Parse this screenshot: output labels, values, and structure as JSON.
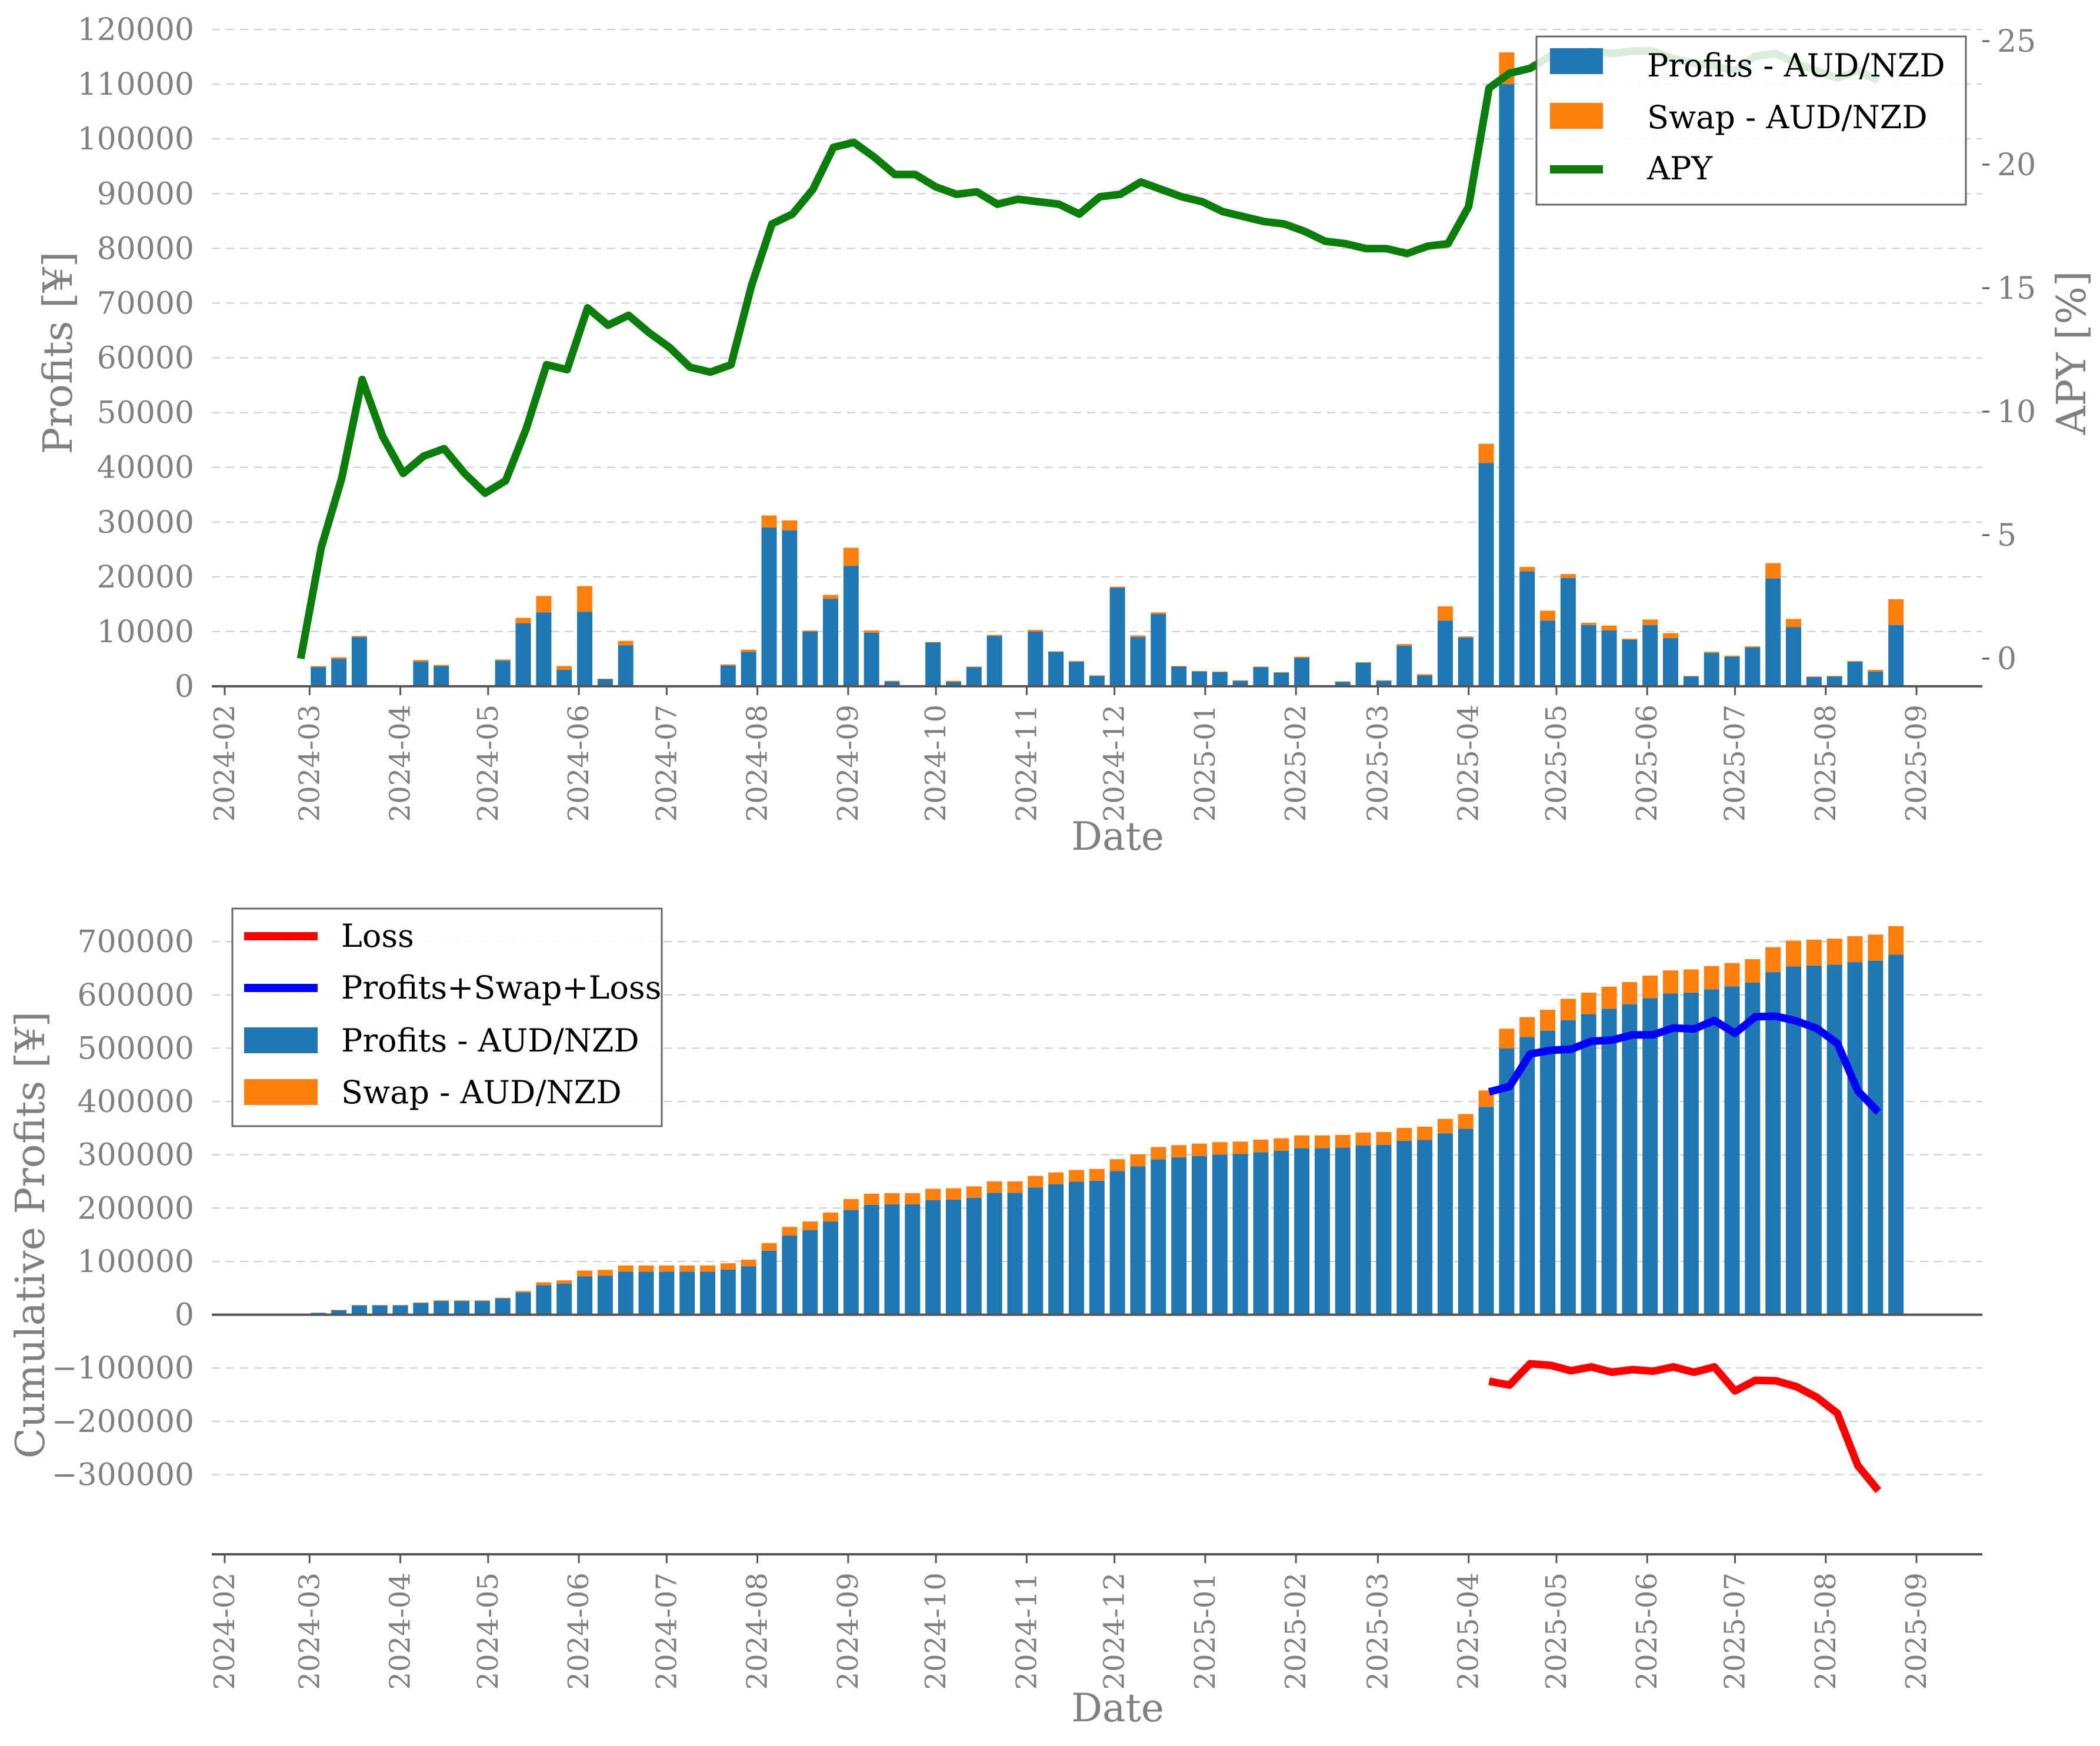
{
  "colors": {
    "profits": "#1f77b4",
    "swap": "#ff7f0e",
    "apy": "#0b7d0b",
    "loss": "#ff0000",
    "net": "#0000ff",
    "grid": "#cccccc",
    "axis": "#555555",
    "text": "#808080"
  },
  "chart_data": [
    {
      "type": "bar",
      "stacked": true,
      "xlabel": "Date",
      "ylabel": "Profits [¥]",
      "y2label": "APY [%]",
      "ylim": [
        0,
        120000
      ],
      "y2lim": [
        -1.2,
        25
      ],
      "yticks": [
        0,
        10000,
        20000,
        30000,
        40000,
        50000,
        60000,
        70000,
        80000,
        90000,
        100000,
        110000,
        120000
      ],
      "y2ticks": [
        0,
        5,
        10,
        15,
        20,
        25
      ],
      "xticks": [
        "2024-02",
        "2024-03",
        "2024-04",
        "2024-05",
        "2024-06",
        "2024-07",
        "2024-08",
        "2024-09",
        "2024-10",
        "2024-11",
        "2024-12",
        "2025-01",
        "2025-02",
        "2025-03",
        "2025-04",
        "2025-05",
        "2025-06",
        "2025-07",
        "2025-08",
        "2025-09"
      ],
      "grid": "horizontal dashed",
      "legend": {
        "placement": "top-right",
        "entries": [
          "Profits - AUD/NZD",
          "Swap - AUD/NZD",
          "APY"
        ]
      },
      "x": [
        "2024-03-04",
        "2024-03-11",
        "2024-03-18",
        "2024-03-25",
        "2024-04-01",
        "2024-04-08",
        "2024-04-15",
        "2024-04-22",
        "2024-04-29",
        "2024-05-06",
        "2024-05-13",
        "2024-05-20",
        "2024-05-27",
        "2024-06-03",
        "2024-06-10",
        "2024-06-17",
        "2024-06-24",
        "2024-07-01",
        "2024-07-08",
        "2024-07-15",
        "2024-07-22",
        "2024-07-29",
        "2024-08-05",
        "2024-08-12",
        "2024-08-19",
        "2024-08-26",
        "2024-09-02",
        "2024-09-09",
        "2024-09-16",
        "2024-09-23",
        "2024-09-30",
        "2024-10-07",
        "2024-10-14",
        "2024-10-21",
        "2024-10-28",
        "2024-11-04",
        "2024-11-11",
        "2024-11-18",
        "2024-11-25",
        "2024-12-02",
        "2024-12-09",
        "2024-12-16",
        "2024-12-23",
        "2024-12-30",
        "2025-01-06",
        "2025-01-13",
        "2025-01-20",
        "2025-01-27",
        "2025-02-03",
        "2025-02-10",
        "2025-02-17",
        "2025-02-24",
        "2025-03-03",
        "2025-03-10",
        "2025-03-17",
        "2025-03-24",
        "2025-03-31",
        "2025-04-07",
        "2025-04-14",
        "2025-04-21",
        "2025-04-28",
        "2025-05-05",
        "2025-05-12",
        "2025-05-19",
        "2025-05-26",
        "2025-06-02",
        "2025-06-09",
        "2025-06-16",
        "2025-06-23",
        "2025-06-30",
        "2025-07-07",
        "2025-07-14",
        "2025-07-21",
        "2025-07-28",
        "2025-08-04",
        "2025-08-11",
        "2025-08-18",
        "2025-08-25"
      ],
      "series": [
        {
          "name": "Profits - AUD/NZD",
          "values": [
            3500,
            5000,
            9000,
            0,
            0,
            4500,
            3700,
            0,
            0,
            4700,
            11500,
            13500,
            3000,
            13600,
            1300,
            7500,
            0,
            0,
            0,
            0,
            3800,
            6300,
            29000,
            28500,
            10000,
            16000,
            22000,
            9800,
            900,
            0,
            8000,
            800,
            3500,
            9200,
            0,
            10000,
            6300,
            4500,
            1900,
            18000,
            9000,
            13200,
            3600,
            2700,
            2600,
            1000,
            3500,
            2500,
            5200,
            0,
            800,
            4300,
            1000,
            7400,
            2000,
            12000,
            8900,
            40800,
            110000,
            21000,
            12000,
            19800,
            11200,
            10200,
            8500,
            11200,
            8800,
            1800,
            6100,
            5400,
            7100,
            19700,
            10800,
            1700,
            1800,
            4500,
            2700,
            11200
          ]
        },
        {
          "name": "Swap - AUD/NZD",
          "values": [
            200,
            300,
            200,
            0,
            0,
            300,
            200,
            0,
            0,
            200,
            1000,
            3000,
            700,
            4700,
            100,
            800,
            0,
            0,
            0,
            0,
            200,
            400,
            2200,
            1800,
            200,
            700,
            3300,
            400,
            100,
            0,
            100,
            200,
            100,
            200,
            0,
            300,
            100,
            100,
            100,
            200,
            300,
            300,
            100,
            100,
            100,
            100,
            100,
            100,
            200,
            0,
            100,
            100,
            100,
            300,
            200,
            2600,
            200,
            3500,
            5800,
            800,
            1800,
            700,
            400,
            900,
            200,
            1000,
            900,
            100,
            200,
            200,
            200,
            2800,
            1500,
            100,
            100,
            100,
            300,
            4700
          ]
        },
        {
          "name": "APY",
          "values": [
            0,
            4.5,
            7.3,
            11.3,
            9,
            7.5,
            8.2,
            8.5,
            7.5,
            6.7,
            7.2,
            9.3,
            11.9,
            11.7,
            14.2,
            13.5,
            13.9,
            13.2,
            12.6,
            11.8,
            11.6,
            11.9,
            15.1,
            17.6,
            18,
            19,
            20.7,
            20.9,
            20.3,
            19.6,
            19.6,
            19.1,
            18.8,
            18.9,
            18.4,
            18.6,
            18.5,
            18.4,
            18,
            18.7,
            18.8,
            19.3,
            19,
            18.7,
            18.5,
            18.1,
            17.9,
            17.7,
            17.6,
            17.3,
            16.9,
            16.8,
            16.6,
            16.6,
            16.4,
            16.7,
            16.8,
            18.3,
            23.1,
            23.7,
            23.9,
            24.4,
            24.5,
            24.6,
            24.5,
            24.6,
            24.6,
            24.3,
            24.1,
            24,
            23.8,
            24.4,
            24.5,
            24.1,
            23.8,
            23.5,
            23.8,
            23.4
          ]
        }
      ]
    },
    {
      "type": "bar",
      "stacked": true,
      "xlabel": "Date",
      "ylabel": "Cumulative Profits [¥]",
      "ylim": [
        -380000,
        720000
      ],
      "yticks": [
        -300000,
        -200000,
        -100000,
        0,
        100000,
        200000,
        300000,
        400000,
        500000,
        600000,
        700000
      ],
      "ytick_labels": [
        "−300000",
        "−200000",
        "−100000",
        "0",
        "100000",
        "200000",
        "300000",
        "400000",
        "500000",
        "600000",
        "700000"
      ],
      "xticks": [
        "2024-02",
        "2024-03",
        "2024-04",
        "2024-05",
        "2024-06",
        "2024-07",
        "2024-08",
        "2024-09",
        "2024-10",
        "2024-11",
        "2024-12",
        "2025-01",
        "2025-02",
        "2025-03",
        "2025-04",
        "2025-05",
        "2025-06",
        "2025-07",
        "2025-08",
        "2025-09"
      ],
      "grid": "horizontal dashed",
      "legend": {
        "placement": "top-left",
        "entries": [
          "Loss",
          "Profits+Swap+Loss",
          "Profits - AUD/NZD",
          "Swap - AUD/NZD"
        ]
      },
      "note_bars": "cumulative sums of the weekly series in the upper chart",
      "lines_x": [
        "2025-04-14",
        "2025-04-21",
        "2025-04-28",
        "2025-05-05",
        "2025-05-12",
        "2025-05-19",
        "2025-05-26",
        "2025-06-02",
        "2025-06-09",
        "2025-06-16",
        "2025-06-23",
        "2025-06-30",
        "2025-07-07",
        "2025-07-14",
        "2025-07-21",
        "2025-07-28",
        "2025-08-04",
        "2025-08-11",
        "2025-08-18",
        "2025-08-25"
      ],
      "series": [
        {
          "name": "Loss",
          "values": [
            -125000,
            -132000,
            -92000,
            -95000,
            -105000,
            -98000,
            -108000,
            -103000,
            -106000,
            -98000,
            -108000,
            -98000,
            -143000,
            -123000,
            -124000,
            -135000,
            -155000,
            -185000,
            -283000,
            -330000
          ]
        },
        {
          "name": "Profits+Swap+Loss",
          "values": [
            418000,
            428000,
            489000,
            496000,
            498000,
            513000,
            515000,
            525000,
            525000,
            538000,
            536000,
            552000,
            528000,
            559000,
            560000,
            551000,
            537000,
            509000,
            420000,
            380000
          ]
        }
      ]
    }
  ]
}
